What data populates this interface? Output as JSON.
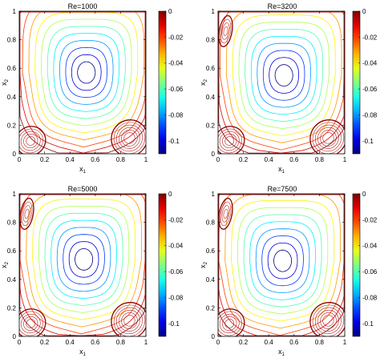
{
  "chart_data": [
    {
      "type": "contour",
      "title": "Re=1000",
      "xlabel": "x",
      "xlabel_sub": "1",
      "ylabel": "x",
      "ylabel_sub": "2",
      "xlim": [
        0,
        1
      ],
      "ylim": [
        0,
        1
      ],
      "xticks": [
        "0",
        "0.2",
        "0.4",
        "0.6",
        "0.8",
        "1"
      ],
      "yticks": [
        "0",
        "0.2",
        "0.4",
        "0.6",
        "0.8",
        "1"
      ],
      "colorbar": {
        "min": -0.11,
        "max": 0,
        "ticks": [
          "0",
          "-0.02",
          "-0.04",
          "-0.06",
          "-0.08",
          "-0.1"
        ]
      },
      "vortex_center": [
        0.53,
        0.57
      ],
      "secondary_vortices": [
        "bottom-left",
        "bottom-right"
      ]
    },
    {
      "type": "contour",
      "title": "Re=3200",
      "xlabel": "x",
      "xlabel_sub": "1",
      "ylabel": "x",
      "ylabel_sub": "2",
      "xlim": [
        0,
        1
      ],
      "ylim": [
        0,
        1
      ],
      "xticks": [
        "0",
        "0.2",
        "0.4",
        "0.6",
        "0.8",
        "1"
      ],
      "yticks": [
        "0",
        "0.2",
        "0.4",
        "0.6",
        "0.8",
        "1"
      ],
      "colorbar": {
        "min": -0.11,
        "max": 0,
        "ticks": [
          "0",
          "-0.02",
          "-0.04",
          "-0.06",
          "-0.08",
          "-0.1"
        ]
      },
      "vortex_center": [
        0.52,
        0.55
      ],
      "secondary_vortices": [
        "bottom-left",
        "bottom-right",
        "top-left"
      ]
    },
    {
      "type": "contour",
      "title": "Re=5000",
      "xlabel": "x",
      "xlabel_sub": "1",
      "ylabel": "x",
      "ylabel_sub": "2",
      "xlim": [
        0,
        1
      ],
      "ylim": [
        0,
        1
      ],
      "xticks": [
        "0",
        "0.2",
        "0.4",
        "0.6",
        "0.8",
        "1"
      ],
      "yticks": [
        "0",
        "0.2",
        "0.4",
        "0.6",
        "0.8",
        "1"
      ],
      "colorbar": {
        "min": -0.11,
        "max": 0,
        "ticks": [
          "0",
          "-0.02",
          "-0.04",
          "-0.06",
          "-0.08",
          "-0.1"
        ]
      },
      "vortex_center": [
        0.51,
        0.54
      ],
      "secondary_vortices": [
        "bottom-left",
        "bottom-right",
        "top-left"
      ]
    },
    {
      "type": "contour",
      "title": "Re=7500",
      "xlabel": "x",
      "xlabel_sub": "1",
      "ylabel": "x",
      "ylabel_sub": "2",
      "xlim": [
        0,
        1
      ],
      "ylim": [
        0,
        1
      ],
      "xticks": [
        "0",
        "0.2",
        "0.4",
        "0.6",
        "0.8",
        "1"
      ],
      "yticks": [
        "0",
        "0.2",
        "0.4",
        "0.6",
        "0.8",
        "1"
      ],
      "colorbar": {
        "min": -0.11,
        "max": 0,
        "ticks": [
          "0",
          "-0.02",
          "-0.04",
          "-0.06",
          "-0.08",
          "-0.1"
        ]
      },
      "vortex_center": [
        0.51,
        0.53
      ],
      "secondary_vortices": [
        "bottom-left",
        "bottom-right",
        "top-left"
      ]
    }
  ]
}
